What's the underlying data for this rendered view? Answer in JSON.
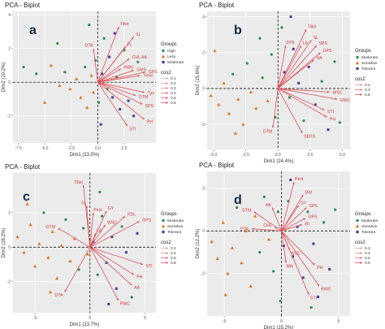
{
  "colors": {
    "arrow": "#e0525a",
    "label": "#d33a3a",
    "green": "#2e8b57",
    "orange": "#e2701f",
    "purple": "#4b3b9a"
  },
  "chart_data": [
    {
      "type": "scatter",
      "panel": "a",
      "title": "PCA - Biplot",
      "xlabel": "Dim1 (23.5%)",
      "ylabel": "Dim2 (10.2%)",
      "xlim": [
        -8,
        5.5
      ],
      "ylim": [
        -3.6,
        4.2
      ],
      "xticks": [
        -7.5,
        -5.0,
        -2.5,
        0.0,
        2.5
      ],
      "yticks": [
        -2,
        0,
        2,
        4
      ],
      "legend": {
        "groups_title": "Groups",
        "groups": [
          {
            "name": "High",
            "shape": "circle",
            "color": "#2e8b57"
          },
          {
            "name": "Less",
            "shape": "triangle",
            "color": "#e2701f"
          },
          {
            "name": "Moderate",
            "shape": "square",
            "color": "#4b3b9a"
          }
        ],
        "cos2_title": "cos2",
        "cos2": [
          "0.1",
          "0.2",
          "0.3",
          "0.4",
          "0.5",
          "0.6"
        ]
      },
      "vectors": [
        {
          "label": "Tiller",
          "x": 2.0,
          "y": 3.3
        },
        {
          "label": "SL",
          "x": 3.4,
          "y": 2.7
        },
        {
          "label": "DTA",
          "x": -0.4,
          "y": 2.0
        },
        {
          "label": "FL",
          "x": 2.6,
          "y": 2.1
        },
        {
          "label": "CHL AA",
          "x": 3.0,
          "y": 1.4
        },
        {
          "label": "RWC",
          "x": 2.2,
          "y": 0.8
        },
        {
          "label": "CMS",
          "x": 3.4,
          "y": 0.7
        },
        {
          "label": "GPS",
          "x": 4.5,
          "y": 0.6
        },
        {
          "label": "Yield",
          "x": 4.0,
          "y": 0.4
        },
        {
          "label": "Tjm",
          "x": 4.4,
          "y": -0.6
        },
        {
          "label": "DTM",
          "x": 3.6,
          "y": -0.8
        },
        {
          "label": "SPS",
          "x": 4.2,
          "y": -1.3
        },
        {
          "label": "PH",
          "x": 4.4,
          "y": -2.2
        },
        {
          "label": "STI",
          "x": 2.8,
          "y": -2.6
        }
      ],
      "points": [
        {
          "x": -7.0,
          "y": 0.9,
          "g": 0
        },
        {
          "x": -5.8,
          "y": 0.5,
          "g": 0
        },
        {
          "x": -4.4,
          "y": 1.0,
          "g": 1
        },
        {
          "x": -3.6,
          "y": -0.2,
          "g": 1
        },
        {
          "x": -3.1,
          "y": 0.6,
          "g": 0
        },
        {
          "x": -2.6,
          "y": -0.4,
          "g": 1
        },
        {
          "x": -2.0,
          "y": 0.2,
          "g": 1
        },
        {
          "x": -1.6,
          "y": -0.9,
          "g": 1
        },
        {
          "x": -1.2,
          "y": 0.9,
          "g": 0
        },
        {
          "x": -1.0,
          "y": -1.5,
          "g": 1
        },
        {
          "x": -0.8,
          "y": 3.4,
          "g": 0
        },
        {
          "x": -0.6,
          "y": 0.4,
          "g": 1
        },
        {
          "x": -0.4,
          "y": -0.6,
          "g": 1
        },
        {
          "x": -0.2,
          "y": 1.3,
          "g": 0
        },
        {
          "x": 0.1,
          "y": -1.2,
          "g": 0
        },
        {
          "x": 0.4,
          "y": 0.5,
          "g": 2
        },
        {
          "x": 0.6,
          "y": 2.6,
          "g": 0
        },
        {
          "x": 0.9,
          "y": -0.4,
          "g": 0
        },
        {
          "x": 1.1,
          "y": 1.5,
          "g": 2
        },
        {
          "x": 1.4,
          "y": -0.9,
          "g": 2
        },
        {
          "x": 1.8,
          "y": 0.3,
          "g": 0
        },
        {
          "x": 2.1,
          "y": -1.6,
          "g": 2
        },
        {
          "x": 2.5,
          "y": 1.9,
          "g": 0
        },
        {
          "x": 2.9,
          "y": -1.1,
          "g": 2
        },
        {
          "x": 3.4,
          "y": -2.0,
          "g": 2
        },
        {
          "x": 3.8,
          "y": 1.2,
          "g": 0
        },
        {
          "x": -5.0,
          "y": -1.2,
          "g": 1
        },
        {
          "x": -3.8,
          "y": 2.3,
          "g": 0
        },
        {
          "x": 0.3,
          "y": -2.5,
          "g": 2
        },
        {
          "x": 1.6,
          "y": 2.9,
          "g": 2
        }
      ]
    },
    {
      "type": "scatter",
      "panel": "b",
      "title": "PCA - Biplot",
      "xlabel": "Dim1 (24.4%)",
      "ylabel": "Dim2 (15.6%)",
      "xlim": [
        -5.5,
        5.6
      ],
      "ylim": [
        -3.4,
        4.3
      ],
      "xticks": [
        -5.0,
        -2.5,
        0.0,
        2.5,
        5.0
      ],
      "yticks": [
        -2,
        0,
        2,
        4
      ],
      "legend": {
        "groups_title": "Groups",
        "groups": [
          {
            "name": "Moderate",
            "shape": "circle",
            "color": "#2e8b57"
          },
          {
            "name": "Sensitive",
            "shape": "triangle",
            "color": "#e2701f"
          },
          {
            "name": "Tolerant",
            "shape": "square",
            "color": "#4b3b9a"
          }
        ],
        "cos2_title": "cos2",
        "cos2": [
          "0.2",
          "0.4",
          "0.6"
        ]
      },
      "vectors": [
        {
          "label": "Tiller",
          "x": 2.2,
          "y": 3.3
        },
        {
          "label": "SL",
          "x": 2.6,
          "y": 2.7
        },
        {
          "label": "LA",
          "x": 1.8,
          "y": 2.4
        },
        {
          "label": "SPS",
          "x": 3.0,
          "y": 2.4
        },
        {
          "label": "GPS",
          "x": 3.3,
          "y": 2.0
        },
        {
          "label": "AA",
          "x": 2.8,
          "y": 1.6
        },
        {
          "label": "DTA",
          "x": 0.6,
          "y": 2.4
        },
        {
          "label": "WSC",
          "x": 4.0,
          "y": -0.2
        },
        {
          "label": "RWC",
          "x": 4.6,
          "y": -0.6
        },
        {
          "label": "STI",
          "x": 3.6,
          "y": -1.2
        },
        {
          "label": "PH",
          "x": 3.8,
          "y": -1.6
        },
        {
          "label": "DTM",
          "x": -0.4,
          "y": -2.2
        },
        {
          "label": "SEPS",
          "x": 1.9,
          "y": -2.5
        }
      ],
      "points": [
        {
          "x": -5.2,
          "y": -0.4,
          "g": 1
        },
        {
          "x": -4.6,
          "y": -0.9,
          "g": 1
        },
        {
          "x": -4.2,
          "y": 0.3,
          "g": 1
        },
        {
          "x": -3.8,
          "y": -1.4,
          "g": 1
        },
        {
          "x": -3.5,
          "y": 0.8,
          "g": 0
        },
        {
          "x": -3.1,
          "y": -0.6,
          "g": 1
        },
        {
          "x": -2.7,
          "y": -2.0,
          "g": 1
        },
        {
          "x": -2.4,
          "y": 1.4,
          "g": 0
        },
        {
          "x": -2.1,
          "y": -0.2,
          "g": 1
        },
        {
          "x": -1.7,
          "y": -1.1,
          "g": 1
        },
        {
          "x": -1.4,
          "y": 2.8,
          "g": 0
        },
        {
          "x": -1.2,
          "y": 0.6,
          "g": 0
        },
        {
          "x": -0.8,
          "y": -0.7,
          "g": 1
        },
        {
          "x": -0.5,
          "y": 1.9,
          "g": 0
        },
        {
          "x": -0.2,
          "y": -1.6,
          "g": 0
        },
        {
          "x": 0.3,
          "y": 3.4,
          "g": 0
        },
        {
          "x": 0.5,
          "y": 0.9,
          "g": 2
        },
        {
          "x": 0.9,
          "y": -0.5,
          "g": 0
        },
        {
          "x": 1.2,
          "y": 2.2,
          "g": 2
        },
        {
          "x": 1.6,
          "y": 0.3,
          "g": 2
        },
        {
          "x": 2.0,
          "y": -1.8,
          "g": 0
        },
        {
          "x": 2.4,
          "y": 1.2,
          "g": 2
        },
        {
          "x": 2.9,
          "y": -0.9,
          "g": 2
        },
        {
          "x": 3.4,
          "y": 0.4,
          "g": 0
        },
        {
          "x": 3.9,
          "y": -2.3,
          "g": 2
        },
        {
          "x": 4.4,
          "y": 1.5,
          "g": 0
        },
        {
          "x": 4.8,
          "y": -1.9,
          "g": 0
        },
        {
          "x": -4.9,
          "y": 2.1,
          "g": 1
        },
        {
          "x": -3.3,
          "y": -2.5,
          "g": 1
        },
        {
          "x": 1.0,
          "y": 4.0,
          "g": 2
        }
      ]
    },
    {
      "type": "scatter",
      "panel": "c",
      "title": "PCA - Biplot",
      "xlabel": "Dim1 (23.7%)",
      "ylabel": "Dim2 (16.2%)",
      "xlim": [
        -7.0,
        6.0
      ],
      "ylim": [
        -3.8,
        4.3
      ],
      "xticks": [
        -5,
        0,
        5
      ],
      "yticks": [
        -2,
        0,
        2
      ],
      "legend": {
        "groups_title": "Groups",
        "groups": [
          {
            "name": "Moderate",
            "shape": "circle",
            "color": "#2e8b57"
          },
          {
            "name": "Sensitive",
            "shape": "triangle",
            "color": "#e2701f"
          },
          {
            "name": "Tolerant",
            "shape": "square",
            "color": "#4b3b9a"
          }
        ],
        "cos2_title": "cos2",
        "cos2": [
          "0.2",
          "0.4",
          "0.6",
          "0.8"
        ]
      },
      "vectors": [
        {
          "label": "Tiller",
          "x": -0.6,
          "y": 3.6
        },
        {
          "label": "SL",
          "x": -0.3,
          "y": 2.4
        },
        {
          "label": "Pext",
          "x": 0.3,
          "y": 2.0
        },
        {
          "label": "GY",
          "x": 1.5,
          "y": 2.1
        },
        {
          "label": "PDL",
          "x": 3.2,
          "y": 1.8
        },
        {
          "label": "GPS",
          "x": 4.5,
          "y": 1.5
        },
        {
          "label": "WSC",
          "x": 1.4,
          "y": 1.3
        },
        {
          "label": "LA",
          "x": 0.5,
          "y": 0.8
        },
        {
          "label": "DTM",
          "x": -2.9,
          "y": 1.1
        },
        {
          "label": "STI",
          "x": 4.8,
          "y": -1.0
        },
        {
          "label": "PH",
          "x": 4.0,
          "y": -1.6
        },
        {
          "label": "AA",
          "x": 3.8,
          "y": -2.2
        },
        {
          "label": "RWC",
          "x": 2.6,
          "y": -3.1
        },
        {
          "label": "DTA",
          "x": -2.3,
          "y": -2.6
        }
      ],
      "points": [
        {
          "x": -6.6,
          "y": 0.6,
          "g": 1
        },
        {
          "x": -6.0,
          "y": -0.3,
          "g": 1
        },
        {
          "x": -5.4,
          "y": 1.3,
          "g": 1
        },
        {
          "x": -5.0,
          "y": -1.1,
          "g": 1
        },
        {
          "x": -4.6,
          "y": 0.2,
          "g": 1
        },
        {
          "x": -4.2,
          "y": 2.0,
          "g": 0
        },
        {
          "x": -3.8,
          "y": -0.6,
          "g": 1
        },
        {
          "x": -3.4,
          "y": 0.9,
          "g": 1
        },
        {
          "x": -3.0,
          "y": -1.8,
          "g": 1
        },
        {
          "x": -2.6,
          "y": 0.1,
          "g": 1
        },
        {
          "x": -2.2,
          "y": 1.6,
          "g": 0
        },
        {
          "x": -1.8,
          "y": -0.8,
          "g": 1
        },
        {
          "x": -1.4,
          "y": 0.5,
          "g": 1
        },
        {
          "x": -1.0,
          "y": -1.3,
          "g": 0
        },
        {
          "x": -0.6,
          "y": 1.1,
          "g": 0
        },
        {
          "x": -0.2,
          "y": -0.4,
          "g": 1
        },
        {
          "x": 0.3,
          "y": 0.3,
          "g": 2
        },
        {
          "x": 0.7,
          "y": -1.6,
          "g": 0
        },
        {
          "x": 1.1,
          "y": 1.8,
          "g": 0
        },
        {
          "x": 1.5,
          "y": -0.9,
          "g": 2
        },
        {
          "x": 2.0,
          "y": 0.6,
          "g": 2
        },
        {
          "x": 2.4,
          "y": -2.4,
          "g": 2
        },
        {
          "x": 2.9,
          "y": 1.2,
          "g": 0
        },
        {
          "x": 3.3,
          "y": -0.3,
          "g": 2
        },
        {
          "x": 3.8,
          "y": -2.9,
          "g": 0
        },
        {
          "x": 4.3,
          "y": 0.8,
          "g": 2
        },
        {
          "x": -5.7,
          "y": 2.5,
          "g": 1
        },
        {
          "x": -3.6,
          "y": -2.6,
          "g": 1
        },
        {
          "x": 0.9,
          "y": 3.2,
          "g": 0
        },
        {
          "x": 1.7,
          "y": -3.3,
          "g": 2
        }
      ]
    },
    {
      "type": "scatter",
      "panel": "d",
      "title": "PCA - Biplot",
      "xlabel": "Dim1 (25.2%)",
      "ylabel": "Dim2 (12.2%)",
      "xlim": [
        -6.5,
        6.0
      ],
      "ylim": [
        -4.0,
        2.8
      ],
      "xticks": [
        -5,
        0,
        5
      ],
      "yticks": [
        -2,
        0,
        2
      ],
      "legend": {
        "groups_title": "Groups",
        "groups": [
          {
            "name": "Moderate",
            "shape": "circle",
            "color": "#2e8b57"
          },
          {
            "name": "Sensitive",
            "shape": "triangle",
            "color": "#e2701f"
          },
          {
            "name": "Tolerant",
            "shape": "square",
            "color": "#4b3b9a"
          }
        ],
        "cos2_title": "cos2",
        "cos2": [
          "0.2",
          "0.4",
          "0.6",
          "0.8"
        ]
      },
      "vectors": [
        {
          "label": "Pext",
          "x": 1.1,
          "y": 2.3
        },
        {
          "label": "DW",
          "x": 1.9,
          "y": 1.7
        },
        {
          "label": "GY",
          "x": 1.5,
          "y": 1.2
        },
        {
          "label": "SPS",
          "x": 2.2,
          "y": 1.1
        },
        {
          "label": "AA",
          "x": -0.8,
          "y": 1.1
        },
        {
          "label": "DTM",
          "x": -2.4,
          "y": 0.9
        },
        {
          "label": "GPS",
          "x": 2.1,
          "y": 0.6
        },
        {
          "label": "RI",
          "x": 1.8,
          "y": 0.3
        },
        {
          "label": "CHL",
          "x": -0.6,
          "y": 0.2
        },
        {
          "label": "DTA",
          "x": -2.6,
          "y": 0.1
        },
        {
          "label": "WSC",
          "x": 0.7,
          "y": -0.9
        },
        {
          "label": "MN",
          "x": 0.4,
          "y": -1.5
        },
        {
          "label": "PH",
          "x": 2.9,
          "y": -1.6
        },
        {
          "label": "RWC",
          "x": 3.3,
          "y": -2.6
        },
        {
          "label": "STI",
          "x": 2.4,
          "y": -3.0
        }
      ],
      "points": [
        {
          "x": -6.1,
          "y": -0.5,
          "g": 1
        },
        {
          "x": -5.6,
          "y": -1.3,
          "g": 1
        },
        {
          "x": -5.1,
          "y": 0.4,
          "g": 1
        },
        {
          "x": -4.7,
          "y": -2.0,
          "g": 1
        },
        {
          "x": -4.3,
          "y": -0.8,
          "g": 1
        },
        {
          "x": -3.9,
          "y": 1.1,
          "g": 0
        },
        {
          "x": -3.5,
          "y": -1.5,
          "g": 1
        },
        {
          "x": -3.1,
          "y": 0.0,
          "g": 1
        },
        {
          "x": -2.7,
          "y": -2.6,
          "g": 1
        },
        {
          "x": -2.3,
          "y": 0.7,
          "g": 1
        },
        {
          "x": -1.9,
          "y": -1.0,
          "g": 0
        },
        {
          "x": -1.5,
          "y": 1.6,
          "g": 0
        },
        {
          "x": -1.1,
          "y": -0.4,
          "g": 1
        },
        {
          "x": -0.7,
          "y": -1.9,
          "g": 0
        },
        {
          "x": -0.3,
          "y": 0.9,
          "g": 0
        },
        {
          "x": 0.2,
          "y": -0.7,
          "g": 2
        },
        {
          "x": 0.6,
          "y": 1.4,
          "g": 0
        },
        {
          "x": 1.0,
          "y": -1.2,
          "g": 2
        },
        {
          "x": 1.4,
          "y": 0.2,
          "g": 2
        },
        {
          "x": 1.9,
          "y": -2.2,
          "g": 2
        },
        {
          "x": 2.3,
          "y": 0.9,
          "g": 0
        },
        {
          "x": 2.8,
          "y": -0.6,
          "g": 2
        },
        {
          "x": 3.2,
          "y": -3.1,
          "g": 2
        },
        {
          "x": 3.7,
          "y": 0.4,
          "g": 0
        },
        {
          "x": 4.2,
          "y": -1.8,
          "g": 2
        },
        {
          "x": 4.7,
          "y": 1.0,
          "g": 0
        },
        {
          "x": -4.9,
          "y": -3.0,
          "g": 1
        },
        {
          "x": 0.8,
          "y": 2.4,
          "g": 2
        },
        {
          "x": 2.6,
          "y": -3.6,
          "g": 0
        },
        {
          "x": -0.1,
          "y": -3.3,
          "g": 0
        }
      ]
    }
  ]
}
